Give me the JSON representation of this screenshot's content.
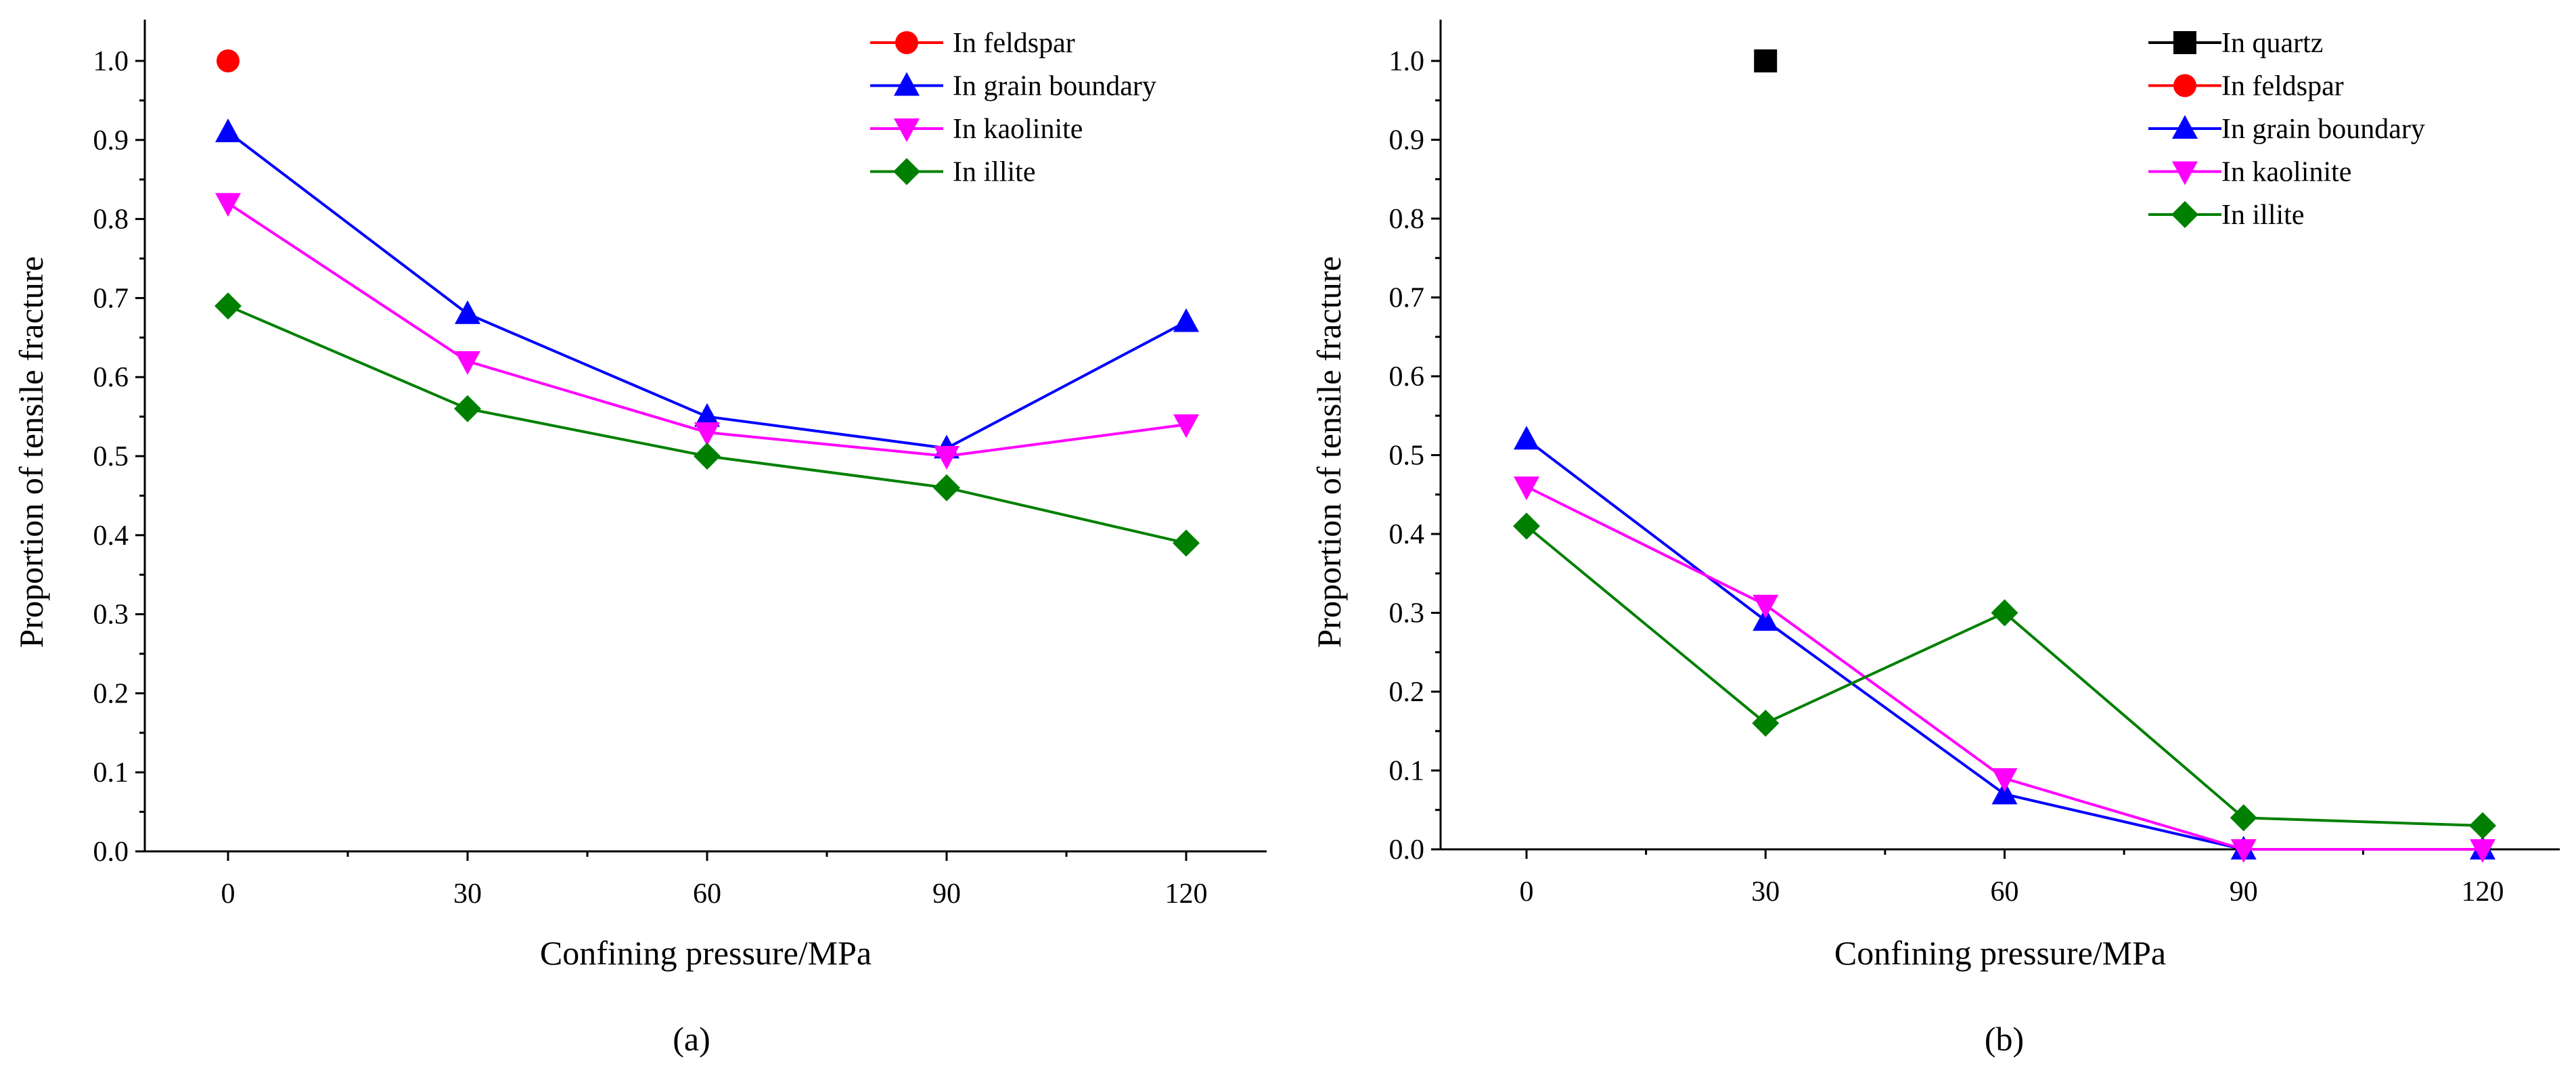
{
  "chart_data": [
    {
      "type": "line",
      "caption": "(a)",
      "xlabel": "Confining pressure/MPa",
      "ylabel": "Proportion of tensile fracture",
      "x": [
        0,
        30,
        60,
        90,
        120
      ],
      "xticks": [
        "0",
        "30",
        "60",
        "90",
        "120"
      ],
      "yticks": [
        "0.0",
        "0.1",
        "0.2",
        "0.3",
        "0.4",
        "0.5",
        "0.6",
        "0.7",
        "0.8",
        "0.9",
        "1.0"
      ],
      "xlim": [
        -12,
        135
      ],
      "ylim": [
        0,
        1.05
      ],
      "grid": false,
      "legend_position": "top-right",
      "series": [
        {
          "name": "In feldspar",
          "marker": "circle",
          "color": "#ff0000",
          "values": [
            1.0,
            null,
            null,
            null,
            null
          ]
        },
        {
          "name": "In grain boundary",
          "marker": "triangle-up",
          "color": "#0000ff",
          "values": [
            0.91,
            0.68,
            0.55,
            0.51,
            0.67
          ]
        },
        {
          "name": "In kaolinite",
          "marker": "triangle-down",
          "color": "#ff00ff",
          "values": [
            0.82,
            0.62,
            0.53,
            0.5,
            0.54
          ]
        },
        {
          "name": "In illite",
          "marker": "diamond",
          "color": "#008000",
          "values": [
            0.69,
            0.56,
            0.5,
            0.46,
            0.39
          ]
        }
      ]
    },
    {
      "type": "line",
      "caption": "(b)",
      "xlabel": "Confining pressure/MPa",
      "ylabel": "Proportion of tensile fracture",
      "x": [
        0,
        30,
        60,
        90,
        120
      ],
      "xticks": [
        "0",
        "30",
        "60",
        "90",
        "120"
      ],
      "yticks": [
        "0.0",
        "0.1",
        "0.2",
        "0.3",
        "0.4",
        "0.5",
        "0.6",
        "0.7",
        "0.8",
        "0.9",
        "1.0"
      ],
      "xlim": [
        -12,
        135
      ],
      "ylim": [
        0,
        1.05
      ],
      "grid": false,
      "legend_position": "top-right",
      "series": [
        {
          "name": "In quartz",
          "marker": "square",
          "color": "#000000",
          "values": [
            null,
            1.0,
            null,
            null,
            null
          ]
        },
        {
          "name": "In feldspar",
          "marker": "circle",
          "color": "#ff0000",
          "values": [
            null,
            null,
            null,
            null,
            null
          ]
        },
        {
          "name": "In grain boundary",
          "marker": "triangle-up",
          "color": "#0000ff",
          "values": [
            0.52,
            0.29,
            0.07,
            0.0,
            0.0
          ]
        },
        {
          "name": "In kaolinite",
          "marker": "triangle-down",
          "color": "#ff00ff",
          "values": [
            0.46,
            0.31,
            0.09,
            0.0,
            0.0
          ]
        },
        {
          "name": "In illite",
          "marker": "diamond",
          "color": "#008000",
          "values": [
            0.41,
            0.16,
            0.3,
            0.04,
            0.03
          ]
        }
      ]
    }
  ]
}
